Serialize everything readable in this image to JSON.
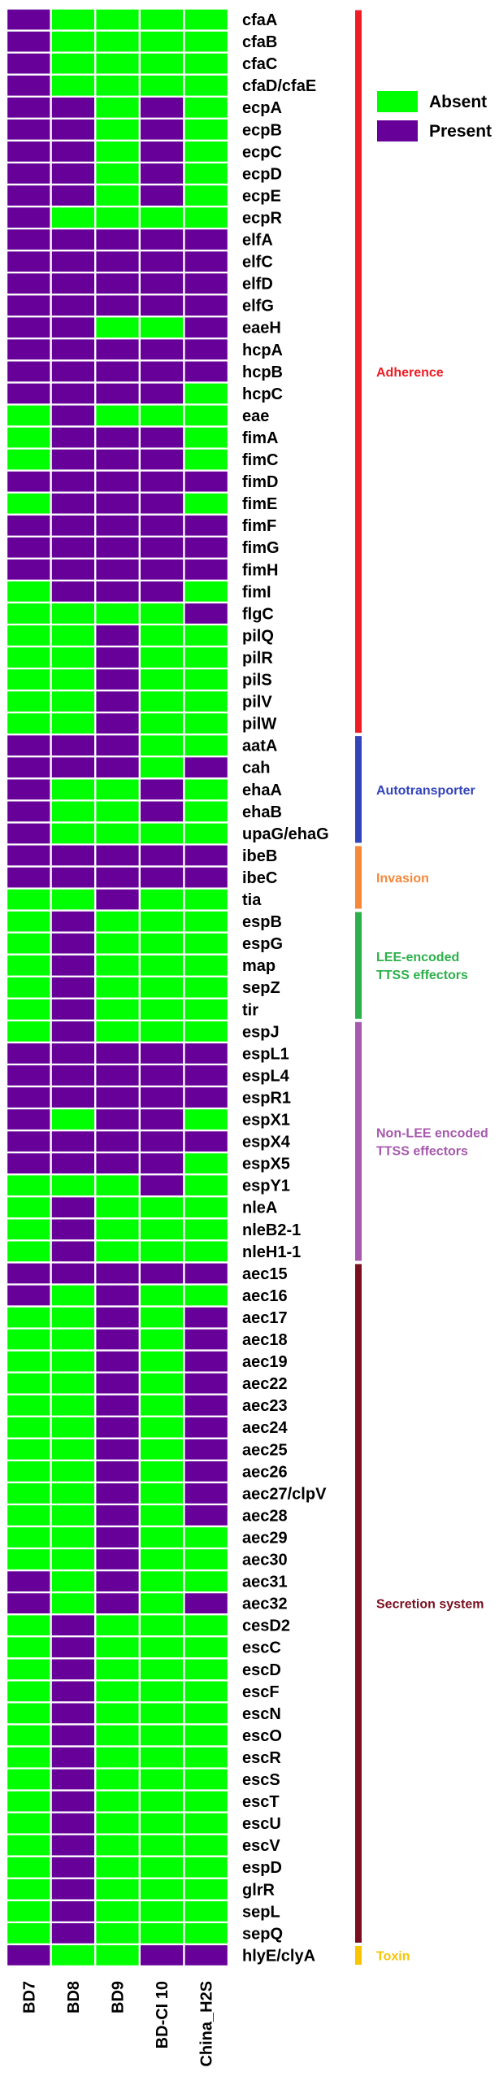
{
  "chart_data": {
    "type": "heatmap",
    "columns": [
      "BD7",
      "BD8",
      "BD9",
      "BD-CI 10",
      "China_H2S"
    ],
    "legend": [
      {
        "key": "A",
        "label": "Absent",
        "color": "#00ff00"
      },
      {
        "key": "P",
        "label": "Present",
        "color": "#660099"
      }
    ],
    "rows": [
      {
        "gene": "cfaA",
        "values": [
          "P",
          "A",
          "A",
          "A",
          "A"
        ]
      },
      {
        "gene": "cfaB",
        "values": [
          "P",
          "A",
          "A",
          "A",
          "A"
        ]
      },
      {
        "gene": "cfaC",
        "values": [
          "P",
          "A",
          "A",
          "A",
          "A"
        ]
      },
      {
        "gene": "cfaD/cfaE",
        "values": [
          "P",
          "A",
          "A",
          "A",
          "A"
        ]
      },
      {
        "gene": "ecpA",
        "values": [
          "P",
          "P",
          "A",
          "P",
          "A"
        ]
      },
      {
        "gene": "ecpB",
        "values": [
          "P",
          "P",
          "A",
          "P",
          "A"
        ]
      },
      {
        "gene": "ecpC",
        "values": [
          "P",
          "P",
          "A",
          "P",
          "A"
        ]
      },
      {
        "gene": "ecpD",
        "values": [
          "P",
          "P",
          "A",
          "P",
          "A"
        ]
      },
      {
        "gene": "ecpE",
        "values": [
          "P",
          "P",
          "A",
          "P",
          "A"
        ]
      },
      {
        "gene": "ecpR",
        "values": [
          "P",
          "A",
          "A",
          "A",
          "A"
        ]
      },
      {
        "gene": "elfA",
        "values": [
          "P",
          "P",
          "P",
          "P",
          "P"
        ]
      },
      {
        "gene": "elfC",
        "values": [
          "P",
          "P",
          "P",
          "P",
          "P"
        ]
      },
      {
        "gene": "elfD",
        "values": [
          "P",
          "P",
          "P",
          "P",
          "P"
        ]
      },
      {
        "gene": "elfG",
        "values": [
          "P",
          "P",
          "P",
          "P",
          "P"
        ]
      },
      {
        "gene": "eaeH",
        "values": [
          "P",
          "P",
          "A",
          "A",
          "P"
        ]
      },
      {
        "gene": "hcpA",
        "values": [
          "P",
          "P",
          "P",
          "P",
          "P"
        ]
      },
      {
        "gene": "hcpB",
        "values": [
          "P",
          "P",
          "P",
          "P",
          "P"
        ]
      },
      {
        "gene": "hcpC",
        "values": [
          "P",
          "P",
          "P",
          "P",
          "A"
        ]
      },
      {
        "gene": "eae",
        "values": [
          "A",
          "P",
          "A",
          "A",
          "A"
        ]
      },
      {
        "gene": "fimA",
        "values": [
          "A",
          "P",
          "P",
          "P",
          "A"
        ]
      },
      {
        "gene": "fimC",
        "values": [
          "A",
          "P",
          "P",
          "P",
          "A"
        ]
      },
      {
        "gene": "fimD",
        "values": [
          "P",
          "P",
          "P",
          "P",
          "P"
        ]
      },
      {
        "gene": "fimE",
        "values": [
          "A",
          "P",
          "P",
          "P",
          "A"
        ]
      },
      {
        "gene": "fimF",
        "values": [
          "P",
          "P",
          "P",
          "P",
          "P"
        ]
      },
      {
        "gene": "fimG",
        "values": [
          "P",
          "P",
          "P",
          "P",
          "P"
        ]
      },
      {
        "gene": "fimH",
        "values": [
          "P",
          "P",
          "P",
          "P",
          "P"
        ]
      },
      {
        "gene": "fimI",
        "values": [
          "A",
          "P",
          "P",
          "P",
          "A"
        ]
      },
      {
        "gene": "flgC",
        "values": [
          "A",
          "A",
          "A",
          "A",
          "P"
        ]
      },
      {
        "gene": "pilQ",
        "values": [
          "A",
          "A",
          "P",
          "A",
          "A"
        ]
      },
      {
        "gene": "pilR",
        "values": [
          "A",
          "A",
          "P",
          "A",
          "A"
        ]
      },
      {
        "gene": "pilS",
        "values": [
          "A",
          "A",
          "P",
          "A",
          "A"
        ]
      },
      {
        "gene": "pilV",
        "values": [
          "A",
          "A",
          "P",
          "A",
          "A"
        ]
      },
      {
        "gene": "pilW",
        "values": [
          "A",
          "A",
          "P",
          "A",
          "A"
        ]
      },
      {
        "gene": "aatA",
        "values": [
          "P",
          "P",
          "P",
          "A",
          "A"
        ]
      },
      {
        "gene": "cah",
        "values": [
          "P",
          "P",
          "P",
          "A",
          "P"
        ]
      },
      {
        "gene": "ehaA",
        "values": [
          "P",
          "A",
          "A",
          "P",
          "A"
        ]
      },
      {
        "gene": "ehaB",
        "values": [
          "P",
          "A",
          "A",
          "P",
          "A"
        ]
      },
      {
        "gene": "upaG/ehaG",
        "values": [
          "P",
          "A",
          "A",
          "A",
          "A"
        ]
      },
      {
        "gene": "ibeB",
        "values": [
          "P",
          "P",
          "P",
          "P",
          "P"
        ]
      },
      {
        "gene": "ibeC",
        "values": [
          "P",
          "P",
          "P",
          "P",
          "P"
        ]
      },
      {
        "gene": "tia",
        "values": [
          "A",
          "A",
          "P",
          "A",
          "A"
        ]
      },
      {
        "gene": "espB",
        "values": [
          "A",
          "P",
          "A",
          "A",
          "A"
        ]
      },
      {
        "gene": "espG",
        "values": [
          "A",
          "P",
          "A",
          "A",
          "A"
        ]
      },
      {
        "gene": "map",
        "values": [
          "A",
          "P",
          "A",
          "A",
          "A"
        ]
      },
      {
        "gene": "sepZ",
        "values": [
          "A",
          "P",
          "A",
          "A",
          "A"
        ]
      },
      {
        "gene": "tir",
        "values": [
          "A",
          "P",
          "A",
          "A",
          "A"
        ]
      },
      {
        "gene": "espJ",
        "values": [
          "A",
          "P",
          "A",
          "A",
          "A"
        ]
      },
      {
        "gene": "espL1",
        "values": [
          "P",
          "P",
          "P",
          "P",
          "P"
        ]
      },
      {
        "gene": "espL4",
        "values": [
          "P",
          "P",
          "P",
          "P",
          "P"
        ]
      },
      {
        "gene": "espR1",
        "values": [
          "P",
          "P",
          "P",
          "P",
          "P"
        ]
      },
      {
        "gene": "espX1",
        "values": [
          "P",
          "A",
          "P",
          "P",
          "A"
        ]
      },
      {
        "gene": "espX4",
        "values": [
          "P",
          "P",
          "P",
          "P",
          "P"
        ]
      },
      {
        "gene": "espX5",
        "values": [
          "P",
          "P",
          "P",
          "P",
          "A"
        ]
      },
      {
        "gene": "espY1",
        "values": [
          "A",
          "A",
          "A",
          "P",
          "A"
        ]
      },
      {
        "gene": "nleA",
        "values": [
          "A",
          "P",
          "A",
          "A",
          "A"
        ]
      },
      {
        "gene": "nleB2-1",
        "values": [
          "A",
          "P",
          "A",
          "A",
          "A"
        ]
      },
      {
        "gene": "nleH1-1",
        "values": [
          "A",
          "P",
          "A",
          "A",
          "A"
        ]
      },
      {
        "gene": "aec15",
        "values": [
          "P",
          "P",
          "P",
          "P",
          "P"
        ]
      },
      {
        "gene": "aec16",
        "values": [
          "P",
          "A",
          "P",
          "A",
          "A"
        ]
      },
      {
        "gene": "aec17",
        "values": [
          "A",
          "A",
          "P",
          "A",
          "P"
        ]
      },
      {
        "gene": "aec18",
        "values": [
          "A",
          "A",
          "P",
          "A",
          "P"
        ]
      },
      {
        "gene": "aec19",
        "values": [
          "A",
          "A",
          "P",
          "A",
          "P"
        ]
      },
      {
        "gene": "aec22",
        "values": [
          "A",
          "A",
          "P",
          "A",
          "P"
        ]
      },
      {
        "gene": "aec23",
        "values": [
          "A",
          "A",
          "P",
          "A",
          "P"
        ]
      },
      {
        "gene": "aec24",
        "values": [
          "A",
          "A",
          "P",
          "A",
          "P"
        ]
      },
      {
        "gene": "aec25",
        "values": [
          "A",
          "A",
          "P",
          "A",
          "P"
        ]
      },
      {
        "gene": "aec26",
        "values": [
          "A",
          "A",
          "P",
          "A",
          "P"
        ]
      },
      {
        "gene": "aec27/clpV",
        "values": [
          "A",
          "A",
          "P",
          "A",
          "P"
        ]
      },
      {
        "gene": "aec28",
        "values": [
          "A",
          "A",
          "P",
          "A",
          "P"
        ]
      },
      {
        "gene": "aec29",
        "values": [
          "A",
          "A",
          "P",
          "A",
          "A"
        ]
      },
      {
        "gene": "aec30",
        "values": [
          "A",
          "A",
          "P",
          "A",
          "A"
        ]
      },
      {
        "gene": "aec31",
        "values": [
          "P",
          "A",
          "P",
          "A",
          "A"
        ]
      },
      {
        "gene": "aec32",
        "values": [
          "P",
          "A",
          "P",
          "A",
          "P"
        ]
      },
      {
        "gene": "cesD2",
        "values": [
          "A",
          "P",
          "A",
          "A",
          "A"
        ]
      },
      {
        "gene": "escC",
        "values": [
          "A",
          "P",
          "A",
          "A",
          "A"
        ]
      },
      {
        "gene": "escD",
        "values": [
          "A",
          "P",
          "A",
          "A",
          "A"
        ]
      },
      {
        "gene": "escF",
        "values": [
          "A",
          "P",
          "A",
          "A",
          "A"
        ]
      },
      {
        "gene": "escN",
        "values": [
          "A",
          "P",
          "A",
          "A",
          "A"
        ]
      },
      {
        "gene": "escO",
        "values": [
          "A",
          "P",
          "A",
          "A",
          "A"
        ]
      },
      {
        "gene": "escR",
        "values": [
          "A",
          "P",
          "A",
          "A",
          "A"
        ]
      },
      {
        "gene": "escS",
        "values": [
          "A",
          "P",
          "A",
          "A",
          "A"
        ]
      },
      {
        "gene": "escT",
        "values": [
          "A",
          "P",
          "A",
          "A",
          "A"
        ]
      },
      {
        "gene": "escU",
        "values": [
          "A",
          "P",
          "A",
          "A",
          "A"
        ]
      },
      {
        "gene": "escV",
        "values": [
          "A",
          "P",
          "A",
          "A",
          "A"
        ]
      },
      {
        "gene": "espD",
        "values": [
          "A",
          "P",
          "A",
          "A",
          "A"
        ]
      },
      {
        "gene": "glrR",
        "values": [
          "A",
          "P",
          "A",
          "A",
          "A"
        ]
      },
      {
        "gene": "sepL",
        "values": [
          "A",
          "P",
          "A",
          "A",
          "A"
        ]
      },
      {
        "gene": "sepQ",
        "values": [
          "A",
          "P",
          "A",
          "A",
          "A"
        ]
      },
      {
        "gene": "hlyE/clyA",
        "values": [
          "P",
          "A",
          "A",
          "P",
          "P"
        ]
      }
    ],
    "categories": [
      {
        "name": "Adherence",
        "color": "#ee1c25",
        "first": 0,
        "last": 32
      },
      {
        "name": "Autotransporter",
        "color": "#3344bb",
        "first": 33,
        "last": 37
      },
      {
        "name": "Invasion",
        "color": "#f7883a",
        "first": 38,
        "last": 40
      },
      {
        "name": "LEE-encoded\nTTSS effectors",
        "color": "#2db04b",
        "first": 41,
        "last": 45
      },
      {
        "name": "Non-LEE encoded\nTTSS effectors",
        "color": "#a65aad",
        "first": 46,
        "last": 56
      },
      {
        "name": "Secretion system",
        "color": "#7a0f20",
        "first": 57,
        "last": 87
      },
      {
        "name": "Toxin",
        "color": "#f9c400",
        "first": 88,
        "last": 88
      }
    ]
  }
}
